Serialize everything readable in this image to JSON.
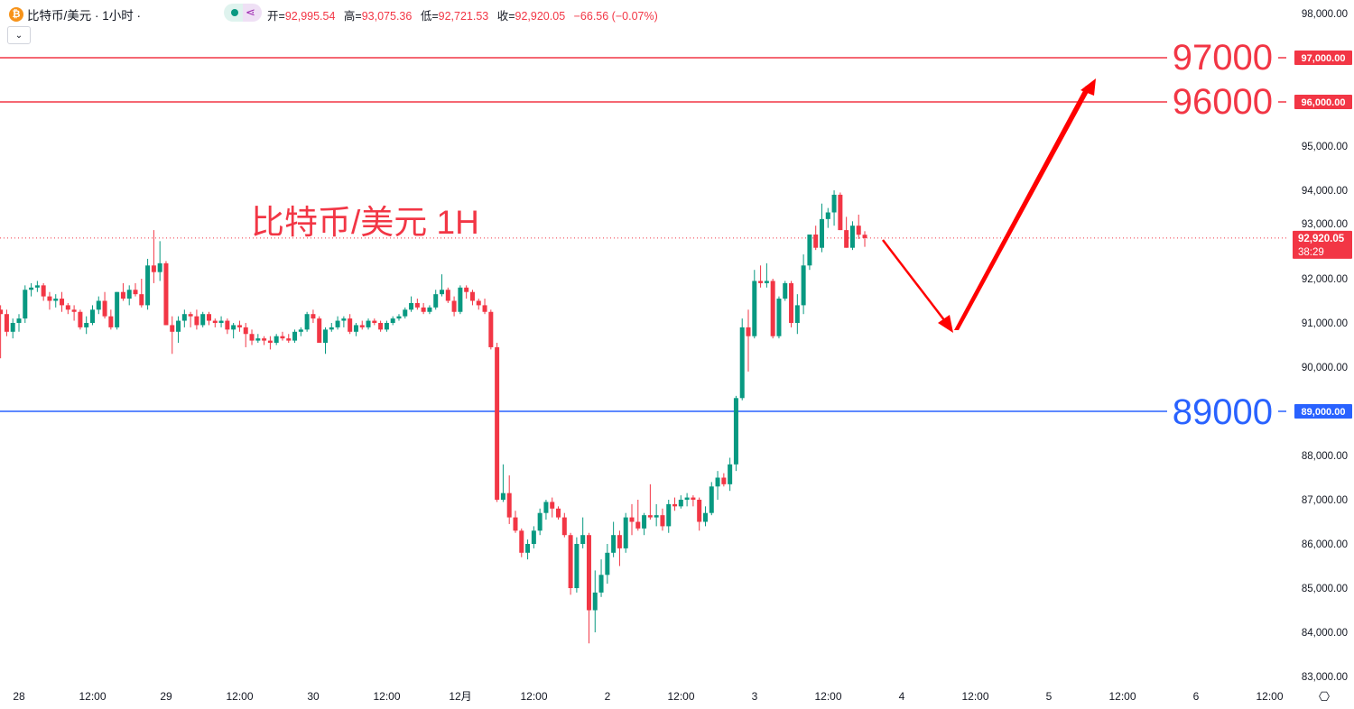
{
  "header": {
    "symbol_title": "比特币/美元 · 1小时 ·",
    "coin_icon": "bitcoin-icon",
    "ohlc": [
      {
        "key": "开=",
        "value": "92,995.54"
      },
      {
        "key": "高=",
        "value": "93,075.36"
      },
      {
        "key": "低=",
        "value": "92,721.53"
      },
      {
        "key": "收=",
        "value": "92,920.05"
      }
    ],
    "change": "−66.56 (−0.07%)",
    "dropdown_icon": "chevron-down-icon"
  },
  "annotation_title": "比特币/美元 1H",
  "levels": [
    {
      "label": "97000",
      "axis_label": "97,000.00",
      "price": 97000,
      "color": "#f23645"
    },
    {
      "label": "96000",
      "axis_label": "96,000.00",
      "price": 96000,
      "color": "#f23645"
    },
    {
      "label": "89000",
      "axis_label": "89,000.00",
      "price": 89000,
      "color": "#2962ff"
    }
  ],
  "current_price": {
    "label": "92,920.05",
    "countdown": "38:29",
    "price": 92920.05,
    "color": "#f23645"
  },
  "colors": {
    "up": "#089981",
    "down": "#f23645",
    "arrow": "#ff0000"
  },
  "chart_data": {
    "type": "candlestick",
    "title": "比特币/美元 · 1小时",
    "ylim": [
      83000,
      98000
    ],
    "yticks": [
      "98,000.00",
      "97,000.00",
      "96,000.00",
      "95,000.00",
      "94,000.00",
      "93,000.00",
      "92,000.00",
      "91,000.00",
      "90,000.00",
      "89,000.00",
      "88,000.00",
      "87,000.00",
      "86,000.00",
      "85,000.00",
      "84,000.00",
      "83,000.00"
    ],
    "ytick_values": [
      98000,
      97000,
      96000,
      95000,
      94000,
      93000,
      92000,
      91000,
      90000,
      89000,
      88000,
      87000,
      86000,
      85000,
      84000,
      83000
    ],
    "xticks": [
      "28",
      "12:00",
      "29",
      "12:00",
      "30",
      "12:00",
      "12月",
      "12:00",
      "2",
      "12:00",
      "3",
      "12:00",
      "4",
      "12:00",
      "5",
      "12:00",
      "6",
      "12:00"
    ],
    "interval": "1h",
    "grid": false,
    "ohlc": [
      [
        91300,
        91400,
        90200,
        91200
      ],
      [
        91200,
        91300,
        90700,
        90800
      ],
      [
        90800,
        91100,
        90650,
        91000
      ],
      [
        91000,
        91200,
        90800,
        91100
      ],
      [
        91100,
        91850,
        91000,
        91750
      ],
      [
        91750,
        91900,
        91600,
        91800
      ],
      [
        91800,
        91950,
        91700,
        91850
      ],
      [
        91850,
        91900,
        91500,
        91600
      ],
      [
        91600,
        91700,
        91300,
        91500
      ],
      [
        91500,
        91650,
        91350,
        91550
      ],
      [
        91550,
        91700,
        91250,
        91400
      ],
      [
        91400,
        91450,
        91200,
        91300
      ],
      [
        91300,
        91400,
        91050,
        91250
      ],
      [
        91250,
        91300,
        90850,
        90900
      ],
      [
        90900,
        91150,
        90750,
        91000
      ],
      [
        91000,
        91400,
        90950,
        91300
      ],
      [
        91300,
        91600,
        91200,
        91500
      ],
      [
        91500,
        91700,
        91100,
        91150
      ],
      [
        91150,
        91300,
        90850,
        90900
      ],
      [
        90900,
        91700,
        90850,
        91700
      ],
      [
        91700,
        91900,
        91500,
        91550
      ],
      [
        91550,
        91850,
        91400,
        91750
      ],
      [
        91750,
        91900,
        91600,
        91650
      ],
      [
        91650,
        92000,
        91350,
        91400
      ],
      [
        91400,
        92450,
        91300,
        92300
      ],
      [
        92300,
        93100,
        91900,
        92150
      ],
      [
        92150,
        92850,
        91950,
        92350
      ],
      [
        92350,
        92400,
        90950,
        90950
      ],
      [
        90950,
        91150,
        90300,
        90800
      ],
      [
        90800,
        91150,
        90550,
        91050
      ],
      [
        91050,
        91300,
        90900,
        91200
      ],
      [
        91200,
        91250,
        90900,
        91150
      ],
      [
        91150,
        91300,
        90850,
        90950
      ],
      [
        90950,
        91250,
        90900,
        91200
      ],
      [
        91200,
        91250,
        90950,
        91050
      ],
      [
        91050,
        91100,
        90900,
        91000
      ],
      [
        91000,
        91150,
        90900,
        91050
      ],
      [
        91050,
        91100,
        90750,
        90850
      ],
      [
        90850,
        91000,
        90650,
        90950
      ],
      [
        90950,
        91050,
        90800,
        90900
      ],
      [
        90900,
        91000,
        90450,
        90750
      ],
      [
        90750,
        90850,
        90500,
        90600
      ],
      [
        90600,
        90750,
        90550,
        90650
      ],
      [
        90650,
        90700,
        90500,
        90600
      ],
      [
        90600,
        90700,
        90400,
        90550
      ],
      [
        90550,
        90750,
        90500,
        90700
      ],
      [
        90700,
        90800,
        90600,
        90650
      ],
      [
        90650,
        90750,
        90550,
        90600
      ],
      [
        90600,
        90850,
        90550,
        90800
      ],
      [
        90800,
        90900,
        90700,
        90850
      ],
      [
        90850,
        91250,
        90800,
        91200
      ],
      [
        91200,
        91300,
        91000,
        91100
      ],
      [
        91100,
        91150,
        90550,
        90550
      ],
      [
        90550,
        90900,
        90300,
        90850
      ],
      [
        90850,
        91000,
        90800,
        90900
      ],
      [
        90900,
        91150,
        90850,
        91050
      ],
      [
        91050,
        91150,
        90900,
        91100
      ],
      [
        91100,
        91200,
        90750,
        90800
      ],
      [
        90800,
        91000,
        90700,
        90950
      ],
      [
        90950,
        91050,
        90850,
        90900
      ],
      [
        90900,
        91100,
        90850,
        91050
      ],
      [
        91050,
        91100,
        90950,
        91000
      ],
      [
        91000,
        91050,
        90800,
        90850
      ],
      [
        90850,
        91050,
        90800,
        91000
      ],
      [
        91000,
        91150,
        90950,
        91100
      ],
      [
        91100,
        91200,
        91050,
        91150
      ],
      [
        91150,
        91350,
        91100,
        91300
      ],
      [
        91300,
        91600,
        91250,
        91450
      ],
      [
        91450,
        91550,
        91300,
        91350
      ],
      [
        91350,
        91450,
        91200,
        91250
      ],
      [
        91250,
        91400,
        91200,
        91350
      ],
      [
        91350,
        91750,
        91300,
        91650
      ],
      [
        91650,
        92100,
        91600,
        91750
      ],
      [
        91750,
        91800,
        91450,
        91500
      ],
      [
        91500,
        91600,
        91150,
        91250
      ],
      [
        91250,
        91850,
        91200,
        91800
      ],
      [
        91800,
        91850,
        91550,
        91700
      ],
      [
        91700,
        91750,
        91400,
        91500
      ],
      [
        91500,
        91550,
        91300,
        91400
      ],
      [
        91400,
        91550,
        91200,
        91250
      ],
      [
        91250,
        91300,
        90400,
        90450
      ],
      [
        90450,
        90550,
        86950,
        87000
      ],
      [
        87000,
        87800,
        86950,
        87150
      ],
      [
        87150,
        87550,
        86450,
        86600
      ],
      [
        86600,
        86750,
        86250,
        86300
      ],
      [
        86300,
        86350,
        85700,
        85800
      ],
      [
        85800,
        86100,
        85650,
        86000
      ],
      [
        86000,
        86400,
        85900,
        86300
      ],
      [
        86300,
        86800,
        86200,
        86700
      ],
      [
        86700,
        87000,
        86550,
        86950
      ],
      [
        86950,
        87050,
        86600,
        86800
      ],
      [
        86800,
        86850,
        86550,
        86600
      ],
      [
        86600,
        86700,
        86150,
        86200
      ],
      [
        86200,
        86250,
        84850,
        85000
      ],
      [
        85000,
        86150,
        84900,
        86000
      ],
      [
        86000,
        86600,
        85900,
        86200
      ],
      [
        86200,
        86250,
        83750,
        84500
      ],
      [
        84500,
        85400,
        84000,
        84900
      ],
      [
        84900,
        85650,
        84800,
        85300
      ],
      [
        85300,
        86000,
        85100,
        85800
      ],
      [
        85800,
        86500,
        85700,
        86200
      ],
      [
        86200,
        86300,
        85500,
        85900
      ],
      [
        85900,
        86700,
        85800,
        86600
      ],
      [
        86600,
        86900,
        86200,
        86500
      ],
      [
        86500,
        87000,
        86300,
        86350
      ],
      [
        86350,
        86700,
        86200,
        86650
      ],
      [
        86650,
        87350,
        86550,
        86600
      ],
      [
        86600,
        86900,
        86400,
        86650
      ],
      [
        86650,
        86800,
        86300,
        86400
      ],
      [
        86400,
        87000,
        86250,
        86900
      ],
      [
        86900,
        87050,
        86750,
        86850
      ],
      [
        86850,
        87100,
        86800,
        87000
      ],
      [
        87000,
        87150,
        86850,
        87050
      ],
      [
        87050,
        87100,
        86850,
        87000
      ],
      [
        87000,
        87050,
        86300,
        86500
      ],
      [
        86500,
        86850,
        86400,
        86700
      ],
      [
        86700,
        87400,
        86650,
        87300
      ],
      [
        87300,
        87650,
        87000,
        87500
      ],
      [
        87500,
        87600,
        87300,
        87350
      ],
      [
        87350,
        87950,
        87200,
        87800
      ],
      [
        87800,
        89350,
        87650,
        89300
      ],
      [
        89300,
        91100,
        89250,
        90900
      ],
      [
        90900,
        91300,
        89900,
        90700
      ],
      [
        90700,
        92200,
        90650,
        91950
      ],
      [
        91950,
        92300,
        91800,
        91900
      ],
      [
        91900,
        92350,
        91800,
        91950
      ],
      [
        91950,
        92000,
        90650,
        90700
      ],
      [
        90700,
        91600,
        90650,
        91550
      ],
      [
        91550,
        91950,
        91500,
        91900
      ],
      [
        91900,
        91950,
        90900,
        91000
      ],
      [
        91000,
        91650,
        90750,
        91400
      ],
      [
        91400,
        92550,
        91200,
        92300
      ],
      [
        92300,
        93000,
        92200,
        93000
      ],
      [
        93000,
        93200,
        92650,
        92700
      ],
      [
        92700,
        93700,
        92600,
        93350
      ],
      [
        93350,
        93600,
        93150,
        93500
      ],
      [
        93500,
        94000,
        93200,
        93900
      ],
      [
        93900,
        93950,
        93100,
        93100
      ],
      [
        93100,
        93400,
        92700,
        92700
      ],
      [
        92700,
        93300,
        92650,
        93200
      ],
      [
        93200,
        93450,
        92900,
        92995.54
      ],
      [
        92995.54,
        93075.36,
        92721.53,
        92920.05
      ]
    ]
  },
  "settings_icon": "settings-icon"
}
